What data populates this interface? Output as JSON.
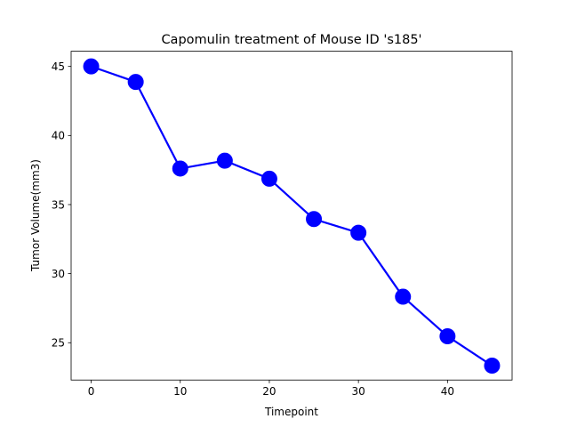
{
  "chart_data": {
    "type": "line",
    "title": "Capomulin treatment of Mouse ID 's185'",
    "xlabel": "Timepoint",
    "ylabel": "Tumor Volume(mm3)",
    "xlim": [
      -2.25,
      47.25
    ],
    "ylim": [
      22.3,
      46.1
    ],
    "xticks": [
      0,
      10,
      20,
      30,
      40
    ],
    "yticks": [
      25,
      30,
      35,
      40,
      45
    ],
    "grid": false,
    "line_color": "#0000ff",
    "marker": "circle",
    "series": [
      {
        "x": [
          0,
          5,
          10,
          15,
          20,
          25,
          30,
          35,
          40,
          45
        ],
        "y": [
          45.0,
          43.88,
          37.61,
          38.18,
          36.87,
          33.95,
          32.96,
          28.33,
          25.47,
          23.34
        ]
      }
    ]
  }
}
